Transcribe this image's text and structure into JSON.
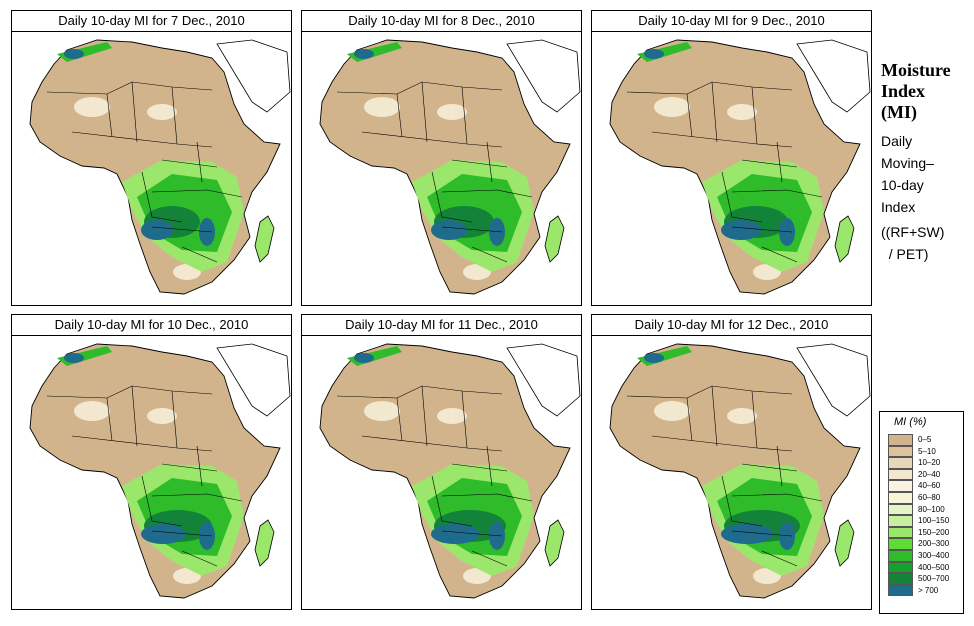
{
  "panels": [
    {
      "title": "Daily 10-day MI for  7 Dec., 2010"
    },
    {
      "title": "Daily 10-day MI for  8 Dec., 2010"
    },
    {
      "title": "Daily 10-day MI for  9 Dec., 2010"
    },
    {
      "title": "Daily 10-day MI for  10 Dec., 2010"
    },
    {
      "title": "Daily 10-day MI for  11 Dec., 2010"
    },
    {
      "title": "Daily 10-day MI for  12 Dec., 2010"
    }
  ],
  "side": {
    "title_lines": [
      "Moisture",
      "Index",
      "(MI)"
    ],
    "desc_lines": [
      "Daily",
      "Moving–",
      "10-day",
      "Index"
    ],
    "formula_lines": [
      "((RF+SW)",
      "  / PET)"
    ]
  },
  "legend": {
    "title": "MI (%)",
    "items": [
      {
        "label": "0–5",
        "color": "#d2b48c"
      },
      {
        "label": "5–10",
        "color": "#dcc39e"
      },
      {
        "label": "10–20",
        "color": "#e8d6b8"
      },
      {
        "label": "20–40",
        "color": "#f2e8cf"
      },
      {
        "label": "40–60",
        "color": "#f8f4e1"
      },
      {
        "label": "60–80",
        "color": "#f5f7d8"
      },
      {
        "label": "80–100",
        "color": "#e6f5c8"
      },
      {
        "label": "100–150",
        "color": "#c8f0a0"
      },
      {
        "label": "150–200",
        "color": "#9be76c"
      },
      {
        "label": "200–300",
        "color": "#5cdc34"
      },
      {
        "label": "300–400",
        "color": "#2ebc2a"
      },
      {
        "label": "400–500",
        "color": "#16a02c"
      },
      {
        "label": "500–700",
        "color": "#14833a"
      },
      {
        "label": "> 700",
        "color": "#1e6b8c"
      }
    ]
  },
  "map_colors": {
    "land": "#d2b48c",
    "wet_light": "#9be76c",
    "wet_mid": "#2ebc2a",
    "wet_dark": "#14833a",
    "wettest": "#1e6b8c",
    "dry_pale": "#f2e8cf",
    "border": "#000000"
  }
}
